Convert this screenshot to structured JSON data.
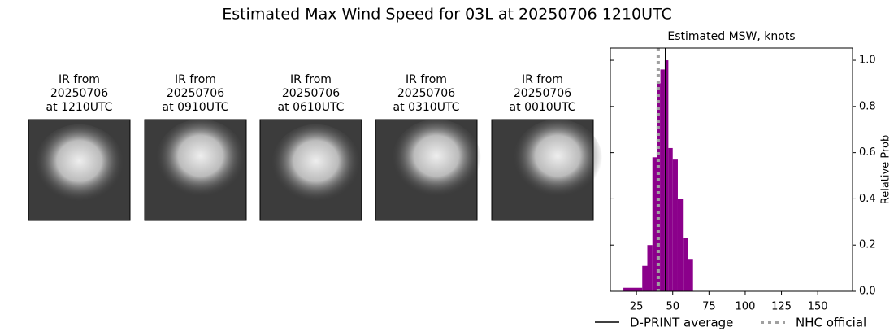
{
  "title": "Estimated Max Wind Speed for 03L at 20250706 1210UTC",
  "panels": [
    {
      "title": [
        "IR from",
        "20250706",
        "at 1210UTC"
      ]
    },
    {
      "title": [
        "IR from",
        "20250706",
        "at 0910UTC"
      ]
    },
    {
      "title": [
        "IR from",
        "20250706",
        "at 0610UTC"
      ]
    },
    {
      "title": [
        "IR from",
        "20250706",
        "at 0310UTC"
      ]
    },
    {
      "title": [
        "IR from",
        "20250706",
        "at 0010UTC"
      ]
    }
  ],
  "chart_data": {
    "type": "histogram",
    "title": "Estimated MSW, knots",
    "y_label": "Relative Prob",
    "bins": [
      16,
      29,
      32.5,
      36,
      39,
      41.5,
      44.5,
      47,
      50,
      53.5,
      57,
      60.5,
      64
    ],
    "counts": [
      0.015,
      0.11,
      0.2,
      0.58,
      0.9,
      0.96,
      1.0,
      0.62,
      0.57,
      0.4,
      0.23,
      0.14
    ],
    "color": "#8b008b",
    "xlim": [
      7,
      174
    ],
    "xticks": [
      25,
      50,
      75,
      100,
      125,
      150
    ],
    "ylim": [
      0,
      1.053
    ],
    "yticks": [
      {
        "value": 0,
        "label": "0.0"
      },
      0.2,
      0.4,
      0.6,
      0.8,
      {
        "value": 1,
        "label": "1.0"
      }
    ],
    "lines": [
      {
        "name": "D-PRINT average",
        "value": 45,
        "color": "#000000",
        "style": "solid"
      },
      {
        "name": "NHC official",
        "value": 40,
        "color": "#a0a0a0",
        "style": "dotted"
      }
    ]
  }
}
